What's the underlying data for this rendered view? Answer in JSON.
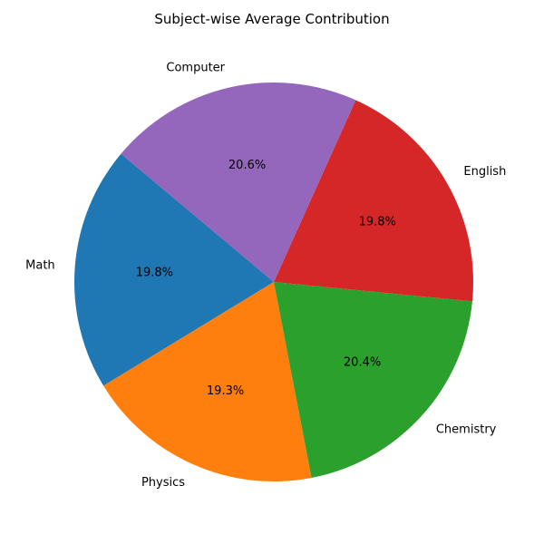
{
  "chart_data": {
    "type": "pie",
    "title": "Subject-wise Average Contribution",
    "start_angle_deg": 140,
    "direction": "counterclockwise",
    "categories": [
      "Math",
      "Physics",
      "Chemistry",
      "English",
      "Computer"
    ],
    "values": [
      19.8,
      19.3,
      20.4,
      19.8,
      20.6
    ],
    "value_labels": [
      "19.8%",
      "19.3%",
      "20.4%",
      "19.8%",
      "20.6%"
    ],
    "colors": [
      "#1f77b4",
      "#ff7f0e",
      "#2ca02c",
      "#d62728",
      "#9467bd"
    ]
  }
}
